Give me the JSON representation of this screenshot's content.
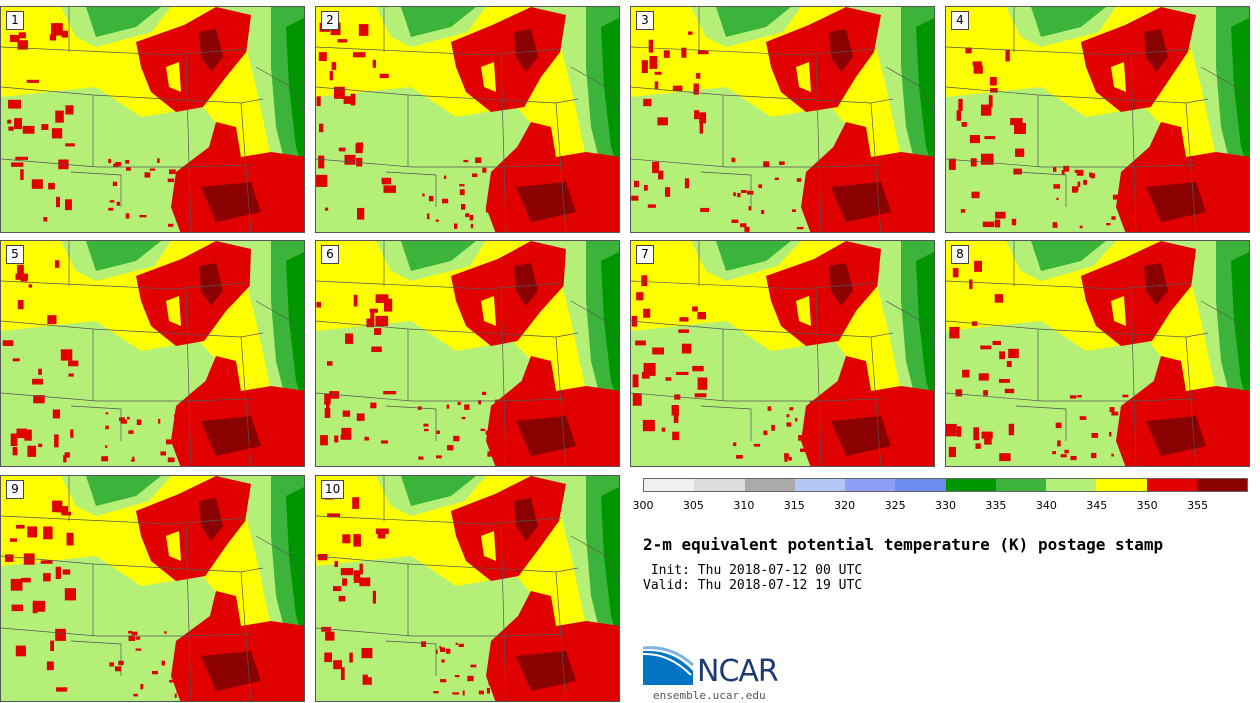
{
  "panels": [
    {
      "label": "1"
    },
    {
      "label": "2"
    },
    {
      "label": "3"
    },
    {
      "label": "4"
    },
    {
      "label": "5"
    },
    {
      "label": "6"
    },
    {
      "label": "7"
    },
    {
      "label": "8"
    },
    {
      "label": "9"
    },
    {
      "label": "10"
    }
  ],
  "colorbar": {
    "colors": [
      "#f0f0f0",
      "#dcdcdc",
      "#aaaaaa",
      "#b4c8f8",
      "#8ca0f8",
      "#6e8cf0",
      "#009600",
      "#3cb43c",
      "#b4f078",
      "#ffff00",
      "#e10000",
      "#8b0000"
    ],
    "ticks": [
      "300",
      "305",
      "310",
      "315",
      "320",
      "325",
      "330",
      "335",
      "340",
      "345",
      "350",
      "355"
    ]
  },
  "title": "2-m equivalent potential temperature (K) postage stamp",
  "init": " Init: Thu 2018-07-12 00 UTC",
  "valid": "Valid: Thu 2018-07-12 19 UTC",
  "logo": {
    "text": "NCAR",
    "url": "ensemble.ucar.edu"
  },
  "map_colors": {
    "yellow": "#ffff00",
    "lightgreen": "#b4f078",
    "midgreen": "#3cb43c",
    "darkgreen": "#009600",
    "red": "#e10000",
    "darkred": "#8b0000",
    "border": "#555555"
  }
}
